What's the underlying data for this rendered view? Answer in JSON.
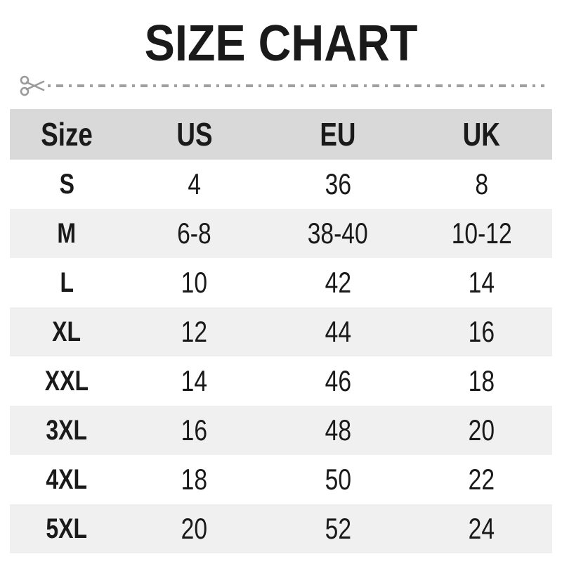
{
  "page": {
    "title": "SIZE CHART"
  },
  "cut_line": {
    "icon": "scissors-icon",
    "style": "dash-dot"
  },
  "chart_data": {
    "type": "table",
    "title": "SIZE CHART",
    "columns": [
      "Size",
      "US",
      "EU",
      "UK"
    ],
    "rows": [
      [
        "S",
        "4",
        "36",
        "8"
      ],
      [
        "M",
        "6-8",
        "38-40",
        "10-12"
      ],
      [
        "L",
        "10",
        "42",
        "14"
      ],
      [
        "XL",
        "12",
        "44",
        "16"
      ],
      [
        "XXL",
        "14",
        "46",
        "18"
      ],
      [
        "3XL",
        "16",
        "48",
        "20"
      ],
      [
        "4XL",
        "18",
        "50",
        "22"
      ],
      [
        "5XL",
        "20",
        "52",
        "24"
      ]
    ],
    "layout": {
      "header_background": "#d9d9d9",
      "alternating_row_background": "#f0f0f0",
      "row_background": "#ffffff",
      "alternation": "even rows white, odd rows gray (0-indexed)"
    }
  },
  "colors": {
    "header_bg": "#d9d9d9",
    "alt_row_bg": "#f0f0f0",
    "row_bg": "#ffffff",
    "text": "#1a1a1a",
    "cut_line": "#a0a0a0"
  }
}
